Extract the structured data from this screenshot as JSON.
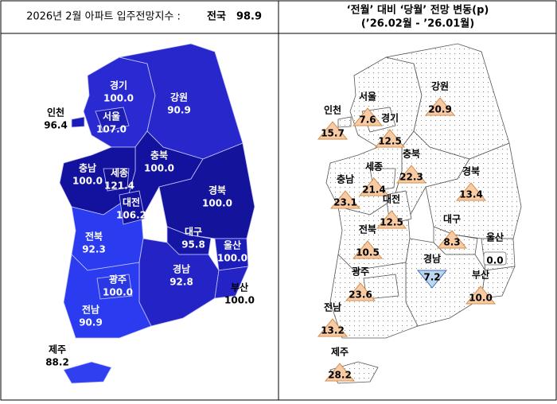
{
  "left": {
    "title": "2026년 2월 아파트 입주전망지수 :",
    "national": {
      "name": "전국",
      "value": 98.9
    }
  },
  "right": {
    "title": "‘전월’ 대비 ‘당월’ 전망 변동(p)",
    "subtitle": "(’26.02월 - ’26.01월)"
  },
  "regions": [
    {
      "name": "경기",
      "index": {
        "value": 100,
        "label": "100.0"
      },
      "change": 12.5,
      "color": "#2a2ad2"
    },
    {
      "name": "인천",
      "index": 96.4,
      "change": 15.7,
      "color": "#1c1cb8"
    },
    {
      "name": "서울",
      "index": {
        "value": 107,
        "label": "107.0"
      },
      "change": 7.6,
      "color": "#1e1eb4"
    },
    {
      "name": "강원",
      "index": 90.9,
      "change": 20.9,
      "color": "#2727cc"
    },
    {
      "name": "충북",
      "index": {
        "value": 100,
        "label": "100.0"
      },
      "change": 22.3,
      "color": "#12129e"
    },
    {
      "name": "충남",
      "index": {
        "value": 100,
        "label": "100.0"
      },
      "change": 23.1,
      "color": "#12129e"
    },
    {
      "name": "세종",
      "index": 121.4,
      "change": 21.4,
      "color": "#10108f"
    },
    {
      "name": "대전",
      "index": 106.2,
      "change": 12.5,
      "color": "#12129e"
    },
    {
      "name": "경북",
      "index": {
        "value": 100,
        "label": "100.0"
      },
      "change": 13.4,
      "color": "#13139c"
    },
    {
      "name": "대구",
      "index": 95.8,
      "change": 8.3,
      "color": "#1616a6"
    },
    {
      "name": "전북",
      "index": 92.3,
      "change": 10.5,
      "color": "#2b3cf0"
    },
    {
      "name": "울산",
      "index": {
        "value": 100,
        "label": "100.0"
      },
      "change": {
        "value": 0,
        "label": "0.0"
      },
      "color": "#1c1cb8"
    },
    {
      "name": "경남",
      "index": 92.8,
      "change": {
        "value": -7.2,
        "label": "7.2"
      },
      "color": "#2323c6"
    },
    {
      "name": "광주",
      "index": {
        "value": 100,
        "label": "100.0"
      },
      "change": 23.6,
      "color": "#2a38e4"
    },
    {
      "name": "부산",
      "index": {
        "value": 100,
        "label": "100.0"
      },
      "change": {
        "value": 10,
        "label": "10.0"
      },
      "color": "#2323c6"
    },
    {
      "name": "전남",
      "index": 90.9,
      "change": 13.2,
      "color": "#2b3cf0"
    },
    {
      "name": "제주",
      "index": 88.2,
      "change": 28.2,
      "color": "#3040f0"
    }
  ]
}
